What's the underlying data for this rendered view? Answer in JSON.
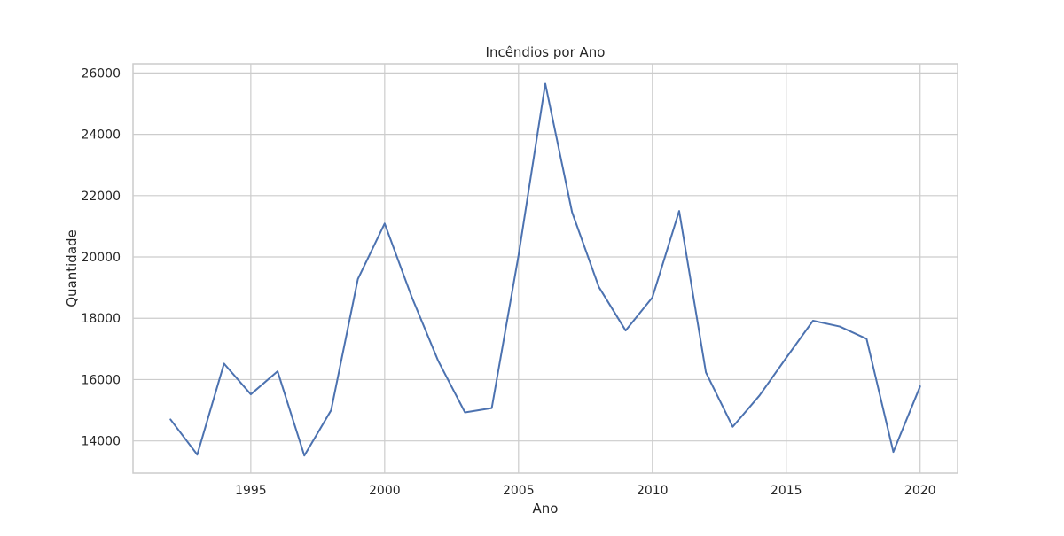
{
  "chart_data": {
    "type": "line",
    "title": "Incêndios por Ano",
    "xlabel": "Ano",
    "ylabel": "Quantidade",
    "xlim": [
      1990.6,
      2021.4
    ],
    "ylim": [
      12950,
      26300
    ],
    "x_ticks": [
      1995,
      2000,
      2005,
      2010,
      2015,
      2020
    ],
    "y_ticks": [
      14000,
      16000,
      18000,
      20000,
      22000,
      24000,
      26000
    ],
    "grid": true,
    "legend": false,
    "colors": {
      "line": "#4c72b0",
      "grid": "#cccccc",
      "background": "#ffffff"
    },
    "series": [
      {
        "x": [
          1992,
          1993,
          1994,
          1995,
          1996,
          1997,
          1998,
          1999,
          2000,
          2001,
          2002,
          2003,
          2004,
          2005,
          2006,
          2007,
          2008,
          2009,
          2010,
          2011,
          2012,
          2013,
          2014,
          2015,
          2016,
          2017,
          2018,
          2019,
          2020
        ],
        "values": [
          14700,
          13550,
          16520,
          15520,
          16270,
          13520,
          15000,
          19280,
          21090,
          18720,
          16610,
          14930,
          15070,
          20050,
          25650,
          21460,
          19020,
          17600,
          18680,
          21500,
          16230,
          14460,
          15480,
          16710,
          17920,
          17730,
          17330,
          13640,
          15780
        ]
      }
    ]
  }
}
